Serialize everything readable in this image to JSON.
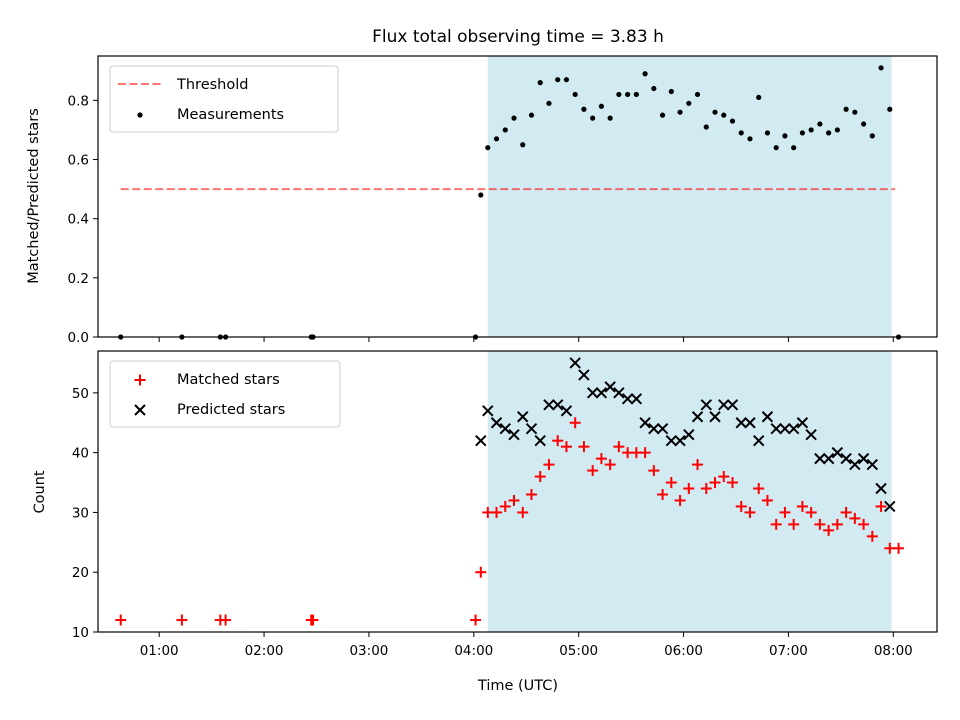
{
  "title": "Flux total observing time = 3.83 h",
  "colors": {
    "shade": "#add8e6",
    "threshold": "#ff0000",
    "measurements": "#000000",
    "matched": "#ff0000",
    "predicted": "#000000"
  },
  "chart_data": [
    {
      "type": "scatter",
      "ylabel": "Matched/Predicted stars",
      "xlim": [
        "00:25",
        "08:25"
      ],
      "ylim": [
        0,
        0.95
      ],
      "yticks": [
        "0.0",
        "0.2",
        "0.4",
        "0.6",
        "0.8"
      ],
      "grid": false,
      "legend_position": "upper-left",
      "shaded_interval": [
        "04:08",
        "07:59"
      ],
      "legend": [
        "Threshold",
        "Measurements"
      ],
      "threshold": {
        "name": "Threshold",
        "value": 0.5,
        "x_range": [
          "00:38",
          "08:01"
        ],
        "style": "dashed"
      },
      "series": [
        {
          "name": "Measurements",
          "marker": "dot",
          "x": [
            "00:38",
            "01:13",
            "01:35",
            "01:38",
            "02:27",
            "02:28",
            "04:01",
            "04:04",
            "04:08",
            "04:13",
            "04:18",
            "04:23",
            "04:28",
            "04:33",
            "04:38",
            "04:43",
            "04:48",
            "04:53",
            "04:58",
            "05:03",
            "05:08",
            "05:13",
            "05:18",
            "05:23",
            "05:28",
            "05:33",
            "05:38",
            "05:43",
            "05:48",
            "05:53",
            "05:58",
            "06:03",
            "06:08",
            "06:13",
            "06:18",
            "06:23",
            "06:28",
            "06:33",
            "06:38",
            "06:43",
            "06:48",
            "06:53",
            "06:58",
            "07:03",
            "07:08",
            "07:13",
            "07:18",
            "07:23",
            "07:28",
            "07:33",
            "07:38",
            "07:43",
            "07:48",
            "07:53",
            "07:58",
            "08:03"
          ],
          "y": [
            0.0,
            0.0,
            0.0,
            0.0,
            0.0,
            0.0,
            0.0,
            0.48,
            0.64,
            0.67,
            0.7,
            0.74,
            0.65,
            0.75,
            0.86,
            0.79,
            0.87,
            0.87,
            0.82,
            0.77,
            0.74,
            0.78,
            0.74,
            0.82,
            0.82,
            0.82,
            0.89,
            0.84,
            0.75,
            0.83,
            0.76,
            0.79,
            0.82,
            0.71,
            0.76,
            0.75,
            0.73,
            0.69,
            0.67,
            0.81,
            0.69,
            0.64,
            0.68,
            0.64,
            0.69,
            0.7,
            0.72,
            0.69,
            0.7,
            0.77,
            0.76,
            0.72,
            0.68,
            0.91,
            0.77,
            0.0
          ]
        }
      ]
    },
    {
      "type": "scatter",
      "xlabel": "Time (UTC)",
      "ylabel": "Count",
      "xlim": [
        "00:25",
        "08:25"
      ],
      "ylim": [
        10,
        57
      ],
      "xticks": [
        "01:00",
        "02:00",
        "03:00",
        "04:00",
        "05:00",
        "06:00",
        "07:00",
        "08:00"
      ],
      "yticks": [
        "10",
        "20",
        "30",
        "40",
        "50"
      ],
      "grid": false,
      "legend_position": "upper-left",
      "shaded_interval": [
        "04:08",
        "07:59"
      ],
      "series": [
        {
          "name": "Matched stars",
          "marker": "plus",
          "x": [
            "00:38",
            "01:13",
            "01:35",
            "01:38",
            "02:27",
            "02:28",
            "04:01",
            "04:04",
            "04:08",
            "04:13",
            "04:18",
            "04:23",
            "04:28",
            "04:33",
            "04:38",
            "04:43",
            "04:48",
            "04:53",
            "04:58",
            "05:03",
            "05:08",
            "05:13",
            "05:18",
            "05:23",
            "05:28",
            "05:33",
            "05:38",
            "05:43",
            "05:48",
            "05:53",
            "05:58",
            "06:03",
            "06:08",
            "06:13",
            "06:18",
            "06:23",
            "06:28",
            "06:33",
            "06:38",
            "06:43",
            "06:48",
            "06:53",
            "06:58",
            "07:03",
            "07:08",
            "07:13",
            "07:18",
            "07:23",
            "07:28",
            "07:33",
            "07:38",
            "07:43",
            "07:48",
            "07:53",
            "07:58",
            "08:03"
          ],
          "y": [
            12,
            12,
            12,
            12,
            12,
            12,
            12,
            20,
            30,
            30,
            31,
            32,
            30,
            33,
            36,
            38,
            42,
            41,
            45,
            41,
            37,
            39,
            38,
            41,
            40,
            40,
            40,
            37,
            33,
            35,
            32,
            34,
            38,
            34,
            35,
            36,
            35,
            31,
            30,
            34,
            32,
            28,
            30,
            28,
            31,
            30,
            28,
            27,
            28,
            30,
            29,
            28,
            26,
            31,
            24,
            24
          ]
        },
        {
          "name": "Predicted stars",
          "marker": "x",
          "x": [
            "04:04",
            "04:08",
            "04:13",
            "04:18",
            "04:23",
            "04:28",
            "04:33",
            "04:38",
            "04:43",
            "04:48",
            "04:53",
            "04:58",
            "05:03",
            "05:08",
            "05:13",
            "05:18",
            "05:23",
            "05:28",
            "05:33",
            "05:38",
            "05:43",
            "05:48",
            "05:53",
            "05:58",
            "06:03",
            "06:08",
            "06:13",
            "06:18",
            "06:23",
            "06:28",
            "06:33",
            "06:38",
            "06:43",
            "06:48",
            "06:53",
            "06:58",
            "07:03",
            "07:08",
            "07:13",
            "07:18",
            "07:23",
            "07:28",
            "07:33",
            "07:38",
            "07:43",
            "07:48",
            "07:53",
            "07:58"
          ],
          "y": [
            42,
            47,
            45,
            44,
            43,
            46,
            44,
            42,
            48,
            48,
            47,
            55,
            53,
            50,
            50,
            51,
            50,
            49,
            49,
            45,
            44,
            44,
            42,
            42,
            43,
            46,
            48,
            46,
            48,
            48,
            45,
            45,
            42,
            46,
            44,
            44,
            44,
            45,
            43,
            39,
            39,
            40,
            39,
            38,
            39,
            38,
            34,
            31
          ]
        }
      ]
    }
  ]
}
